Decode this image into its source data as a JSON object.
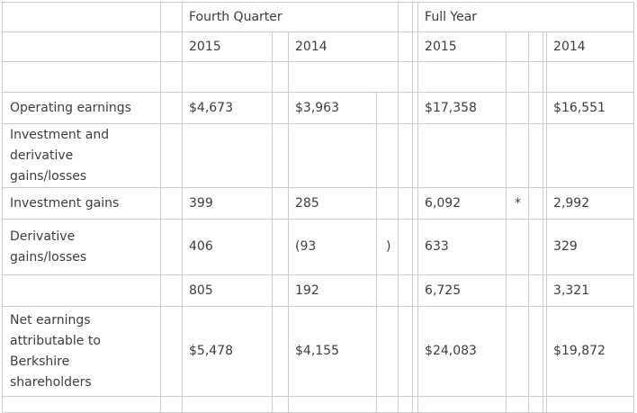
{
  "colors": {
    "border": "#cdcdcd",
    "text": "#3d3d3d",
    "background": "#ffffff"
  },
  "table": {
    "column_group_headers": [
      "Fourth Quarter",
      "Full Year"
    ],
    "year_headers": [
      "2015",
      "2014",
      "2015",
      "2014"
    ],
    "footnote_marker": "*",
    "rows": [
      {
        "name": "row-header-groups",
        "cells": [
          {
            "t": "",
            "n": "corner-cell"
          },
          {
            "t": "",
            "n": "spacer-cell"
          },
          {
            "t": "Fourth Quarter",
            "cs": 4,
            "n": "column-group-header-fourth-quarter"
          },
          {
            "t": "",
            "n": "spacer-cell"
          },
          {
            "t": "",
            "n": "spacer-cell"
          },
          {
            "t": "Full Year",
            "cs": 5,
            "n": "column-group-header-full-year"
          }
        ]
      },
      {
        "name": "row-header-years",
        "cells": [
          {
            "t": "",
            "n": "row-label-cell"
          },
          {
            "t": "",
            "n": "spacer-cell"
          },
          {
            "t": "2015",
            "n": "year-header"
          },
          {
            "t": "",
            "n": "spacer-cell"
          },
          {
            "t": "2014",
            "cs": 2,
            "n": "year-header"
          },
          {
            "t": "",
            "n": "spacer-cell"
          },
          {
            "t": "",
            "n": "spacer-cell"
          },
          {
            "t": "2015",
            "n": "year-header"
          },
          {
            "t": "",
            "n": "footnote-cell"
          },
          {
            "t": "",
            "n": "spacer-cell"
          },
          {
            "t": "",
            "n": "spacer-cell"
          },
          {
            "t": "2014",
            "n": "year-header"
          }
        ]
      },
      {
        "name": "row-blank",
        "cells": [
          {
            "t": "",
            "n": "row-label-cell"
          },
          {
            "t": "",
            "n": "spacer-cell"
          },
          {
            "t": "",
            "n": "value-cell"
          },
          {
            "t": "",
            "n": "spacer-cell"
          },
          {
            "t": "",
            "cs": 2,
            "n": "value-cell"
          },
          {
            "t": "",
            "n": "spacer-cell"
          },
          {
            "t": "",
            "n": "spacer-cell"
          },
          {
            "t": "",
            "n": "value-cell"
          },
          {
            "t": "",
            "n": "footnote-cell"
          },
          {
            "t": "",
            "n": "spacer-cell"
          },
          {
            "t": "",
            "n": "spacer-cell"
          },
          {
            "t": "",
            "n": "value-cell"
          }
        ]
      },
      {
        "name": "row-operating-earnings",
        "cells": [
          {
            "t": "Operating earnings",
            "n": "row-label-cell"
          },
          {
            "t": "",
            "n": "spacer-cell"
          },
          {
            "t": "$4,673",
            "n": "value-cell"
          },
          {
            "t": "",
            "n": "spacer-cell"
          },
          {
            "t": "$3,963",
            "n": "value-cell"
          },
          {
            "t": "",
            "n": "paren-cell"
          },
          {
            "t": "",
            "n": "spacer-cell"
          },
          {
            "t": "",
            "n": "spacer-cell"
          },
          {
            "t": "$17,358",
            "n": "value-cell"
          },
          {
            "t": "",
            "n": "footnote-cell"
          },
          {
            "t": "",
            "n": "spacer-cell"
          },
          {
            "t": "",
            "n": "spacer-cell"
          },
          {
            "t": "$16,551",
            "n": "value-cell"
          }
        ]
      },
      {
        "name": "row-inv-der-label",
        "cells": [
          {
            "t": "Investment and\nderivative\ngains/losses",
            "n": "row-label-cell"
          },
          {
            "t": "",
            "n": "spacer-cell"
          },
          {
            "t": "",
            "n": "value-cell"
          },
          {
            "t": "",
            "n": "spacer-cell"
          },
          {
            "t": "",
            "n": "value-cell"
          },
          {
            "t": "",
            "n": "paren-cell"
          },
          {
            "t": "",
            "n": "spacer-cell"
          },
          {
            "t": "",
            "n": "spacer-cell"
          },
          {
            "t": "",
            "n": "value-cell"
          },
          {
            "t": "",
            "n": "footnote-cell"
          },
          {
            "t": "",
            "n": "spacer-cell"
          },
          {
            "t": "",
            "n": "spacer-cell"
          },
          {
            "t": "",
            "n": "value-cell"
          }
        ]
      },
      {
        "name": "row-investment-gains",
        "cells": [
          {
            "t": "Investment gains",
            "n": "row-label-cell"
          },
          {
            "t": "",
            "n": "spacer-cell"
          },
          {
            "t": "399",
            "n": "value-cell"
          },
          {
            "t": "",
            "n": "spacer-cell"
          },
          {
            "t": "285",
            "n": "value-cell"
          },
          {
            "t": "",
            "n": "paren-cell"
          },
          {
            "t": "",
            "n": "spacer-cell"
          },
          {
            "t": "",
            "n": "spacer-cell"
          },
          {
            "t": "6,092",
            "n": "value-cell"
          },
          {
            "t": "*",
            "n": "footnote-cell"
          },
          {
            "t": "",
            "n": "spacer-cell"
          },
          {
            "t": "",
            "n": "spacer-cell"
          },
          {
            "t": "2,992",
            "n": "value-cell"
          }
        ]
      },
      {
        "name": "row-derivative-gains",
        "cells": [
          {
            "t": "Derivative\ngains/losses",
            "n": "row-label-cell"
          },
          {
            "t": "",
            "n": "spacer-cell"
          },
          {
            "t": "406",
            "n": "value-cell"
          },
          {
            "t": "",
            "n": "spacer-cell"
          },
          {
            "t": "(93",
            "n": "value-cell"
          },
          {
            "t": ")",
            "n": "paren-cell"
          },
          {
            "t": "",
            "n": "spacer-cell"
          },
          {
            "t": "",
            "n": "spacer-cell"
          },
          {
            "t": "633",
            "n": "value-cell"
          },
          {
            "t": "",
            "n": "footnote-cell"
          },
          {
            "t": "",
            "n": "spacer-cell"
          },
          {
            "t": "",
            "n": "spacer-cell"
          },
          {
            "t": "329",
            "n": "value-cell"
          }
        ]
      },
      {
        "name": "row-subtotal",
        "cells": [
          {
            "t": "",
            "n": "row-label-cell"
          },
          {
            "t": "",
            "n": "spacer-cell"
          },
          {
            "t": "805",
            "n": "value-cell"
          },
          {
            "t": "",
            "n": "spacer-cell"
          },
          {
            "t": "192",
            "n": "value-cell"
          },
          {
            "t": "",
            "n": "paren-cell"
          },
          {
            "t": "",
            "n": "spacer-cell"
          },
          {
            "t": "",
            "n": "spacer-cell"
          },
          {
            "t": "6,725",
            "n": "value-cell"
          },
          {
            "t": "",
            "n": "footnote-cell"
          },
          {
            "t": "",
            "n": "spacer-cell"
          },
          {
            "t": "",
            "n": "spacer-cell"
          },
          {
            "t": "3,321",
            "n": "value-cell"
          }
        ]
      },
      {
        "name": "row-net-earnings",
        "cells": [
          {
            "t": "Net earnings\nattributable to\nBerkshire\nshareholders",
            "n": "row-label-cell"
          },
          {
            "t": "",
            "n": "spacer-cell"
          },
          {
            "t": "$5,478",
            "n": "value-cell"
          },
          {
            "t": "",
            "n": "spacer-cell"
          },
          {
            "t": "$4,155",
            "n": "value-cell"
          },
          {
            "t": "",
            "n": "paren-cell"
          },
          {
            "t": "",
            "n": "spacer-cell"
          },
          {
            "t": "",
            "n": "spacer-cell"
          },
          {
            "t": "$24,083",
            "n": "value-cell"
          },
          {
            "t": "",
            "n": "footnote-cell"
          },
          {
            "t": "",
            "n": "spacer-cell"
          },
          {
            "t": "",
            "n": "spacer-cell"
          },
          {
            "t": "$19,872",
            "n": "value-cell"
          }
        ]
      },
      {
        "name": "row-tail",
        "cells": [
          {
            "t": "",
            "n": "row-label-cell"
          },
          {
            "t": "",
            "n": "spacer-cell"
          },
          {
            "t": "",
            "n": "value-cell"
          },
          {
            "t": "",
            "n": "spacer-cell"
          },
          {
            "t": "",
            "n": "value-cell"
          },
          {
            "t": "",
            "n": "paren-cell"
          },
          {
            "t": "",
            "n": "spacer-cell"
          },
          {
            "t": "",
            "n": "spacer-cell"
          },
          {
            "t": "",
            "n": "value-cell"
          },
          {
            "t": "",
            "n": "footnote-cell"
          },
          {
            "t": "",
            "n": "spacer-cell"
          },
          {
            "t": "",
            "n": "spacer-cell"
          },
          {
            "t": "",
            "n": "value-cell"
          }
        ]
      }
    ]
  }
}
